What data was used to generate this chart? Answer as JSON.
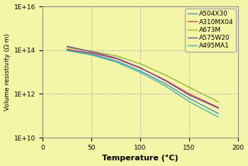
{
  "title": "",
  "xlabel": "Temperature (°C)",
  "ylabel": "Volume resistivity (Ω·m)",
  "xlim": [
    0,
    200
  ],
  "ylim_log": [
    10,
    16
  ],
  "yticks_exp": [
    10,
    12,
    14,
    16
  ],
  "xticks": [
    0,
    50,
    100,
    150,
    200
  ],
  "background_color": "#F5F5A8",
  "plot_bg_color": "#F5F5A8",
  "series": [
    {
      "label": "A504X30",
      "color": "#4488CC",
      "x": [
        25,
        50,
        75,
        100,
        125,
        150,
        175,
        180
      ],
      "log10y": [
        14.0,
        13.82,
        13.52,
        13.05,
        12.48,
        11.8,
        11.22,
        11.1
      ]
    },
    {
      "label": "A310MX04",
      "color": "#CC4444",
      "x": [
        25,
        50,
        75,
        100,
        125,
        150,
        175,
        180
      ],
      "log10y": [
        14.04,
        13.87,
        13.62,
        13.18,
        12.65,
        12.0,
        11.48,
        11.38
      ]
    },
    {
      "label": "A673M",
      "color": "#88BB33",
      "x": [
        25,
        50,
        75,
        100,
        125,
        150,
        175,
        180
      ],
      "log10y": [
        14.12,
        13.95,
        13.75,
        13.38,
        12.88,
        12.3,
        11.75,
        11.62
      ]
    },
    {
      "label": "A575W20",
      "color": "#7744AA",
      "x": [
        25,
        50,
        75,
        100,
        125,
        150,
        175,
        180
      ],
      "log10y": [
        14.18,
        13.93,
        13.65,
        13.2,
        12.62,
        11.95,
        11.45,
        11.35
      ]
    },
    {
      "label": "A495MA1",
      "color": "#33BBBB",
      "x": [
        25,
        50,
        75,
        100,
        125,
        150,
        175,
        180
      ],
      "log10y": [
        13.98,
        13.78,
        13.46,
        12.98,
        12.38,
        11.65,
        11.05,
        10.95
      ]
    }
  ],
  "legend_fontsize": 6.5,
  "tick_fontsize": 6.5,
  "xlabel_fontsize": 8,
  "ylabel_fontsize": 6.5
}
